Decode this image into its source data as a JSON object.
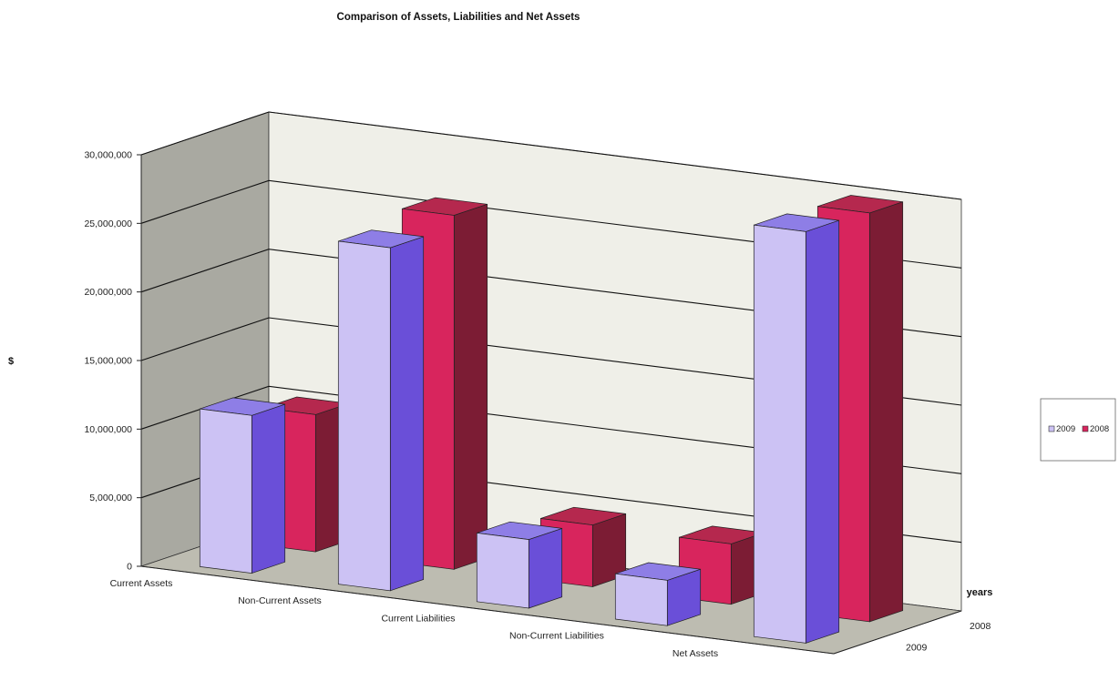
{
  "chart_data": {
    "type": "bar",
    "style": "3d-clustered-depth",
    "title": "Comparison of Assets, Liabilities and Net Assets",
    "ylabel": "$",
    "depth_label": "years",
    "categories": [
      "Current Assets",
      "Non-Current Assets",
      "Current Liabilities",
      "Non-Current Liabilities",
      "Net Assets"
    ],
    "y_ticks": [
      "0",
      "5,000,000",
      "10,000,000",
      "15,000,000",
      "20,000,000",
      "25,000,000",
      "30,000,000"
    ],
    "ylim": [
      0,
      30000000
    ],
    "grid": true,
    "series": [
      {
        "name": "2009",
        "values": [
          11500000,
          25000000,
          5000000,
          3300000,
          30000000
        ],
        "color": "#ccc2f4",
        "side_color": "#6a4fd8",
        "top_color": "#8e7ee6"
      },
      {
        "name": "2008",
        "values": [
          10000000,
          25800000,
          4500000,
          4400000,
          29800000
        ],
        "color": "#d8255d",
        "side_color": "#7c1c34",
        "top_color": "#b5284e"
      }
    ],
    "depth_ticks": [
      "2009",
      "2008"
    ],
    "legend": {
      "position": "right",
      "entries": [
        "2009",
        "2008"
      ]
    }
  }
}
